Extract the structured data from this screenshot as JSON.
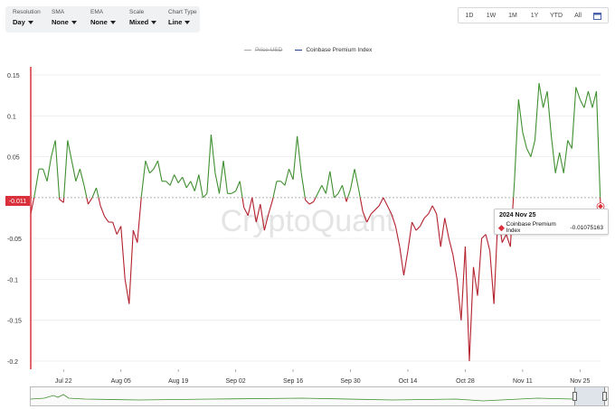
{
  "controls": [
    {
      "label": "Resolution",
      "value": "Day"
    },
    {
      "label": "SMA",
      "value": "None"
    },
    {
      "label": "EMA",
      "value": "None"
    },
    {
      "label": "Scale",
      "value": "Mixed"
    },
    {
      "label": "Chart Type",
      "value": "Line"
    }
  ],
  "range_buttons": [
    "1D",
    "1W",
    "1M",
    "1Y",
    "YTD",
    "All"
  ],
  "legend": {
    "price": "Price USD",
    "index": "Coinbase Premium Index"
  },
  "tooltip": {
    "date": "2024 Nov 25",
    "series": "Coinbase Premium Index",
    "value": "-0.01075163"
  },
  "last_value_label": "-0.011",
  "watermark": "CryptoQuant",
  "colors": {
    "positive": "#3f8f2f",
    "negative": "#b3202c",
    "axis_accent": "#d9303b",
    "marker": "#d9303b"
  },
  "chart_data": {
    "type": "line",
    "ylim": [
      -0.21,
      0.16
    ],
    "y_ticks": [
      0.15,
      0.1,
      0.05,
      0,
      -0.05,
      -0.1,
      -0.15,
      -0.2
    ],
    "y_tick_labels": [
      "0.15",
      "0.1",
      "0.05",
      "0",
      "-0.05",
      "-0.1",
      "-0.15",
      "-0.2"
    ],
    "x_labels": [
      {
        "label": "Jul 22",
        "day": 8
      },
      {
        "label": "Aug 05",
        "day": 22
      },
      {
        "label": "Aug 19",
        "day": 36
      },
      {
        "label": "Sep 02",
        "day": 50
      },
      {
        "label": "Sep 16",
        "day": 64
      },
      {
        "label": "Sep 30",
        "day": 78
      },
      {
        "label": "Oct 14",
        "day": 92
      },
      {
        "label": "Oct 28",
        "day": 106
      },
      {
        "label": "Nov 11",
        "day": 120
      },
      {
        "label": "Nov 25",
        "day": 134
      }
    ],
    "series": [
      {
        "name": "Coinbase Premium Index",
        "values": [
          -0.02,
          0.005,
          0.035,
          0.035,
          0.02,
          0.05,
          0.07,
          -0.002,
          -0.006,
          0.07,
          0.045,
          0.02,
          0.035,
          0.015,
          -0.008,
          0.0,
          0.012,
          -0.01,
          -0.023,
          -0.03,
          -0.03,
          -0.045,
          -0.035,
          -0.1,
          -0.13,
          -0.04,
          -0.055,
          0.002,
          0.045,
          0.03,
          0.035,
          0.045,
          0.02,
          0.02,
          0.015,
          0.028,
          0.018,
          0.025,
          0.012,
          0.02,
          0.008,
          0.028,
          0.0,
          0.005,
          0.077,
          0.03,
          0.005,
          0.045,
          0.005,
          0.005,
          0.008,
          0.02,
          -0.012,
          -0.022,
          0.0,
          -0.03,
          -0.008,
          -0.04,
          -0.02,
          -0.003,
          0.02,
          0.02,
          0.015,
          0.035,
          0.022,
          0.075,
          0.03,
          -0.003,
          -0.008,
          -0.005,
          0.005,
          0.015,
          0.005,
          0.032,
          0.0,
          0.005,
          0.015,
          -0.005,
          0.01,
          0.035,
          0.01,
          -0.017,
          -0.03,
          -0.02,
          -0.015,
          -0.01,
          0.0,
          -0.01,
          -0.02,
          -0.035,
          -0.06,
          -0.095,
          -0.065,
          -0.03,
          -0.04,
          -0.035,
          -0.025,
          -0.02,
          -0.01,
          -0.02,
          -0.06,
          -0.025,
          -0.05,
          -0.07,
          -0.1,
          -0.15,
          -0.06,
          -0.2,
          -0.085,
          -0.12,
          -0.05,
          -0.045,
          -0.065,
          -0.13,
          -0.02,
          -0.055,
          -0.045,
          -0.06,
          0.02,
          0.12,
          0.08,
          0.06,
          0.05,
          0.07,
          0.14,
          0.11,
          0.13,
          0.075,
          0.03,
          0.055,
          0.03,
          0.07,
          0.06,
          0.135,
          0.12,
          0.11,
          0.13,
          0.11,
          0.13,
          -0.01075163
        ]
      }
    ]
  }
}
